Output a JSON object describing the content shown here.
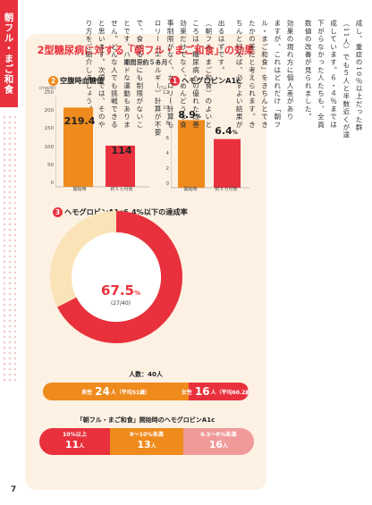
{
  "side_tab": "朝フル・まご和食",
  "page_number": "7",
  "infographic": {
    "title": "2型糖尿病に対する「朝フル・まご和食」の効果",
    "subtitle": "期間：約５ヵ月",
    "fasting": {
      "num": "2",
      "title": "空腹時血糖値",
      "unit": "(mg/dl)",
      "ticks": [
        "250",
        "200",
        "150",
        "100",
        "50",
        "0"
      ],
      "values": [
        "219.4",
        "114"
      ],
      "categories": [
        "開始時",
        "約５ヵ月後"
      ]
    },
    "hba1c": {
      "num": "1",
      "title": "ヘモグロビンA1c",
      "unit": "(%)",
      "ticks": [
        "12",
        "10",
        "8",
        "6",
        "4",
        "2",
        "0"
      ],
      "values": [
        "8.9",
        "6.4"
      ],
      "pct": "%",
      "categories": [
        "開始時",
        "約５ヵ月後"
      ]
    },
    "rate": {
      "num": "3",
      "title": "ヘモグロビンA1c6.4%以下の達成率",
      "percent": "67.5",
      "pct": "%",
      "fraction": "(27/40)"
    },
    "people": "人数：40人",
    "male": {
      "label": "男性",
      "count": "24",
      "suffix": "人（平均51歳）"
    },
    "female": {
      "label": "女性",
      "count": "16",
      "suffix": "人（平均60.2歳）"
    },
    "hb_title": "「朝フル・まご和食」開始時のヘモグロビンA1c",
    "hb_groups": [
      {
        "label": "10%以上",
        "count": "11",
        "unit": "人"
      },
      {
        "label": "8〜10%未満",
        "count": "13",
        "unit": "人"
      },
      {
        "label": "6.5〜8%未満",
        "count": "16",
        "unit": "人"
      }
    ]
  },
  "chart_data": [
    {
      "type": "bar",
      "title": "空腹時血糖値",
      "ylabel": "(mg/dl)",
      "categories": [
        "開始時",
        "約５ヵ月後"
      ],
      "values": [
        219.4,
        114
      ],
      "ylim": [
        0,
        250
      ]
    },
    {
      "type": "bar",
      "title": "ヘモグロビンA1c",
      "ylabel": "(%)",
      "categories": [
        "開始時",
        "約５ヵ月後"
      ],
      "values": [
        8.9,
        6.4
      ],
      "ylim": [
        0,
        12
      ]
    },
    {
      "type": "pie",
      "title": "ヘモグロビンA1c6.4%以下の達成率",
      "values": [
        67.5,
        32.5
      ]
    }
  ],
  "prose_columns": [
    "成し、重症の10％以上だった群",
    "（11人）でも５人と半数近くが達",
    "成しています。６・４％までは",
    "下がらなかった人たちも、全員",
    "数値の改善が見られました。",
    "",
    "効果の現れ方に個人差があり",
    "ますが、これはどれだけ「朝フ",
    "ル・まご和食」をきちんとでき",
    "たかの差だと考えられます。き",
    "ちんと行えば、必ずよい結果が",
    "",
    "出るはずです。",
    "（朝フル・まご和食）のよいと",
    "ころは、糖尿病への優れた改善",
    "効果だけでなく、めんどうな食",
    "事制限がなく、カロリー計算も",
    "ロリー（エネルギー）計算が不要",
    "",
    "で、食べる量にも制限がないこ",
    "とです。ハードな運動もありま",
    "せん。どんな人でも挑戦できる",
    "と思います。次項では、そのや",
    "り方をご紹介しましょう。"
  ]
}
